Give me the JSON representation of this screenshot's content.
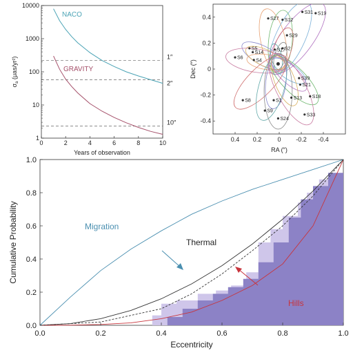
{
  "chart_data": [
    {
      "type": "line",
      "xlabel": "Years of observation",
      "ylabel": "σ",
      "ylabel_sub": "a",
      "ylabel_units": "(μas/yr²)",
      "xlim": [
        0,
        10
      ],
      "ylim": [
        1,
        10000
      ],
      "yscale": "log",
      "xticks": [
        0,
        2,
        4,
        6,
        8,
        10
      ],
      "yticks": [
        1,
        10,
        100,
        1000,
        10000
      ],
      "series": [
        {
          "name": "NACO",
          "color": "#4aa3b5",
          "x": [
            1,
            1.5,
            2,
            2.5,
            3,
            4,
            5,
            6,
            7,
            8,
            9,
            10
          ],
          "y": [
            8000,
            3500,
            1900,
            1150,
            750,
            380,
            220,
            145,
            100,
            75,
            58,
            45
          ]
        },
        {
          "name": "GRAVITY",
          "color": "#a5506a",
          "x": [
            1,
            1.5,
            2,
            2.5,
            3,
            4,
            5,
            6,
            7,
            8,
            9,
            10
          ],
          "y": [
            300,
            120,
            60,
            36,
            23,
            11,
            6.5,
            4.2,
            2.9,
            2.1,
            1.6,
            1.3
          ]
        }
      ],
      "reference_lines": [
        {
          "label": "1″",
          "y": 220
        },
        {
          "label": "2″",
          "y": 58
        },
        {
          "label": "10″",
          "y": 2.3
        }
      ]
    },
    {
      "type": "scatter",
      "xlabel": "RA (″)",
      "ylabel": "Dec (″)",
      "xlim": [
        0.6,
        -0.6
      ],
      "ylim": [
        -0.5,
        0.5
      ],
      "xticks": [
        0.4,
        0.2,
        0,
        -0.2,
        -0.4
      ],
      "yticks": [
        -0.4,
        -0.2,
        0,
        0.2,
        0.4
      ],
      "stars": [
        {
          "name": "S27",
          "x": 0.1,
          "y": 0.39
        },
        {
          "name": "S31",
          "x": -0.21,
          "y": 0.44
        },
        {
          "name": "S19",
          "x": -0.33,
          "y": 0.43
        },
        {
          "name": "S12",
          "x": -0.03,
          "y": 0.38
        },
        {
          "name": "S29",
          "x": -0.07,
          "y": 0.26
        },
        {
          "name": "S5",
          "x": 0.27,
          "y": 0.16
        },
        {
          "name": "S14",
          "x": 0.24,
          "y": 0.13
        },
        {
          "name": "S17",
          "x": 0.04,
          "y": 0.15
        },
        {
          "name": "S2",
          "x": -0.03,
          "y": 0.16
        },
        {
          "name": "S6",
          "x": 0.4,
          "y": 0.09
        },
        {
          "name": "S4",
          "x": 0.23,
          "y": 0.07
        },
        {
          "name": "S39",
          "x": -0.18,
          "y": -0.07
        },
        {
          "name": "S21",
          "x": -0.19,
          "y": -0.12
        },
        {
          "name": "S18",
          "x": -0.28,
          "y": -0.21
        },
        {
          "name": "S8",
          "x": 0.33,
          "y": -0.24
        },
        {
          "name": "S1",
          "x": 0.05,
          "y": -0.24
        },
        {
          "name": "S13",
          "x": -0.11,
          "y": -0.22
        },
        {
          "name": "S9",
          "x": 0.13,
          "y": -0.32
        },
        {
          "name": "S24",
          "x": 0.01,
          "y": -0.38
        },
        {
          "name": "S33",
          "x": -0.23,
          "y": -0.35
        }
      ]
    },
    {
      "type": "area",
      "xlabel": "Eccentricity",
      "ylabel": "Cumulative Probability",
      "xlim": [
        0,
        1
      ],
      "ylim": [
        0,
        1
      ],
      "xticks": [
        0.0,
        0.2,
        0.4,
        0.6,
        0.8,
        1.0
      ],
      "yticks": [
        0.0,
        0.2,
        0.4,
        0.6,
        0.8,
        1.0
      ],
      "series": [
        {
          "name": "Migration",
          "color": "#4a8fb0",
          "x": [
            0,
            0.1,
            0.2,
            0.3,
            0.4,
            0.5,
            0.6,
            0.7,
            0.8,
            0.9,
            1.0
          ],
          "y": [
            0,
            0.17,
            0.33,
            0.46,
            0.57,
            0.67,
            0.75,
            0.82,
            0.88,
            0.94,
            1.0
          ]
        },
        {
          "name": "Thermal",
          "color": "#333333",
          "x": [
            0,
            0.1,
            0.2,
            0.3,
            0.4,
            0.5,
            0.6,
            0.7,
            0.8,
            0.9,
            1.0
          ],
          "y": [
            0,
            0.01,
            0.04,
            0.09,
            0.16,
            0.25,
            0.36,
            0.49,
            0.64,
            0.81,
            1.0
          ]
        },
        {
          "name": "Hills",
          "color": "#c8343c",
          "x": [
            0,
            0.1,
            0.2,
            0.3,
            0.4,
            0.5,
            0.6,
            0.7,
            0.8,
            0.9,
            1.0
          ],
          "y": [
            0,
            0.001,
            0.005,
            0.015,
            0.04,
            0.08,
            0.15,
            0.24,
            0.37,
            0.6,
            1.0
          ]
        },
        {
          "name": "",
          "color": "#333333",
          "dashed": true,
          "x": [
            0,
            0.2,
            0.4,
            0.5,
            0.6,
            0.7,
            0.8,
            0.9,
            1.0
          ],
          "y": [
            0,
            0.02,
            0.1,
            0.19,
            0.31,
            0.45,
            0.6,
            0.78,
            1.0
          ]
        },
        {
          "name": "",
          "fill": "#cfc6ea",
          "step": true,
          "x": [
            0.0,
            0.3,
            0.37,
            0.4,
            0.45,
            0.52,
            0.58,
            0.63,
            0.68,
            0.72,
            0.76,
            0.8,
            0.85,
            0.88,
            0.92,
            1.0
          ],
          "y": [
            0.0,
            0.0,
            0.06,
            0.13,
            0.15,
            0.19,
            0.21,
            0.24,
            0.32,
            0.5,
            0.58,
            0.66,
            0.74,
            0.8,
            0.88,
            1.0
          ]
        },
        {
          "name": "",
          "fill": "#8c82c6",
          "step": true,
          "x": [
            0.0,
            0.38,
            0.42,
            0.47,
            0.52,
            0.57,
            0.62,
            0.67,
            0.72,
            0.77,
            0.82,
            0.86,
            0.9,
            0.95,
            1.0
          ],
          "y": [
            0.0,
            0.0,
            0.05,
            0.1,
            0.15,
            0.19,
            0.23,
            0.28,
            0.38,
            0.5,
            0.65,
            0.76,
            0.84,
            0.92,
            1.0
          ]
        }
      ]
    }
  ],
  "annotations": {
    "migration": "Migration",
    "thermal": "Thermal",
    "hills": "Hills",
    "naco": "NACO",
    "gravity": "GRAVITY"
  }
}
